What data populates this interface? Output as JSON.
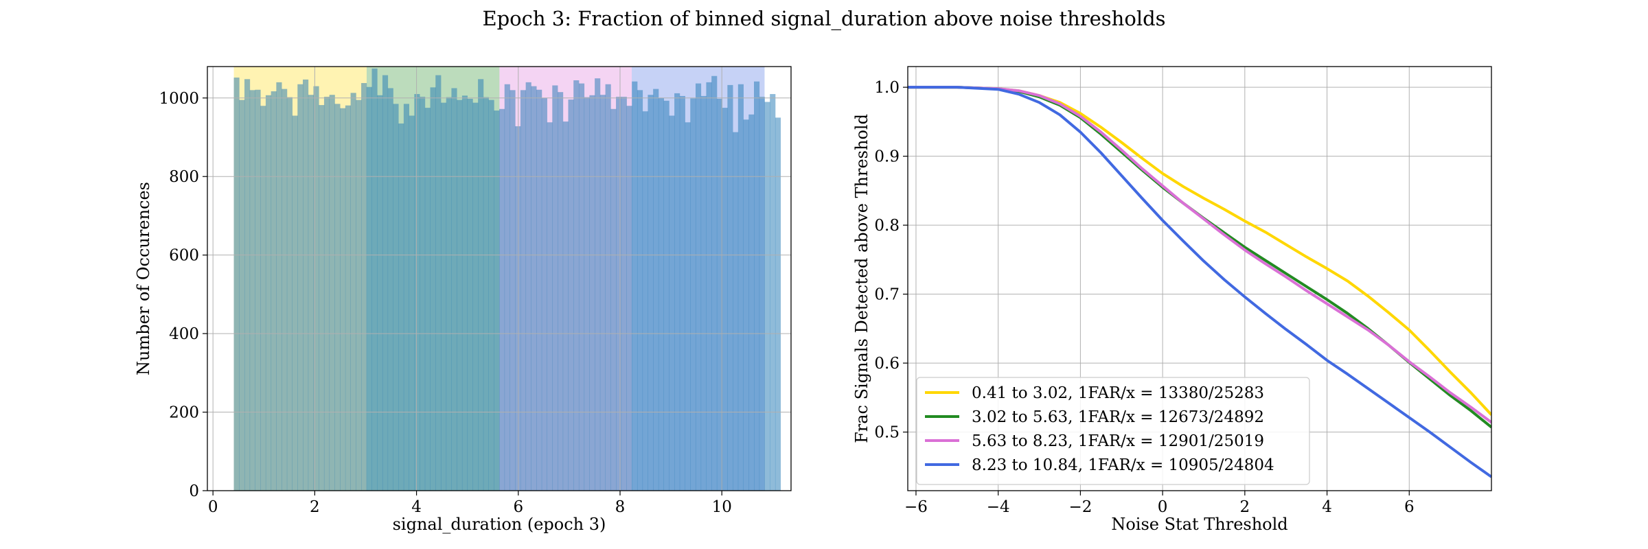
{
  "figure": {
    "suptitle": "Epoch 3: Fraction of binned signal_duration above noise thresholds"
  },
  "colors": {
    "bin1": "#FFD700",
    "bin2": "#228B22",
    "bin3": "#DA70D6",
    "bin4": "#4169E1",
    "hist_fill": "#1f77b4",
    "grid": "#b0b0b0"
  },
  "chart_data": [
    {
      "type": "bar",
      "subtype": "histogram",
      "xlabel": "signal_duration (epoch 3)",
      "ylabel": "Number of Occurences",
      "xlim": [
        -0.11,
        11.36
      ],
      "ylim": [
        0,
        1080
      ],
      "xticks": [
        0,
        2,
        4,
        6,
        8,
        10
      ],
      "yticks": [
        0,
        200,
        400,
        600,
        800,
        1000
      ],
      "grid": true,
      "bin_range": [
        0.41,
        10.84
      ],
      "bin_width": 0.1043,
      "counts": [
        1052,
        995,
        1048,
        1020,
        1021,
        980,
        1007,
        1017,
        1040,
        1023,
        1002,
        955,
        1035,
        1047,
        1008,
        1030,
        982,
        1003,
        1008,
        985,
        974,
        981,
        1013,
        995,
        1038,
        1028,
        1075,
        1007,
        1058,
        1025,
        985,
        935,
        985,
        955,
        1010,
        1003,
        975,
        1027,
        1058,
        988,
        1002,
        1025,
        995,
        1006,
        998,
        988,
        1048,
        1002,
        995,
        968,
        972,
        1035,
        1020,
        928,
        1020,
        1040,
        1030,
        1021,
        1000,
        938,
        1032,
        1015,
        940,
        996,
        1045,
        1037,
        1002,
        1007,
        1050,
        1008,
        1035,
        972,
        1003,
        1003,
        980,
        1042,
        1020,
        966,
        1008,
        1023,
        1000,
        993,
        955,
        1012,
        1005,
        938,
        999,
        1037,
        1005,
        1040,
        1056,
        998,
        975,
        1033,
        913,
        1035,
        945,
        958,
        1042,
        1003,
        990,
        1010,
        950
      ],
      "bands": [
        {
          "from": 0.41,
          "to": 3.02,
          "color": "#FFD700"
        },
        {
          "from": 3.02,
          "to": 5.63,
          "color": "#228B22"
        },
        {
          "from": 5.63,
          "to": 8.23,
          "color": "#DA70D6"
        },
        {
          "from": 8.23,
          "to": 10.84,
          "color": "#4169E1"
        }
      ]
    },
    {
      "type": "line",
      "xlabel": "Noise Stat Threshold",
      "ylabel": "Frac Signals Detected above Threshold",
      "xlim": [
        -6.2,
        8.0
      ],
      "ylim": [
        0.415,
        1.03
      ],
      "xticks": [
        -6,
        -4,
        -2,
        0,
        2,
        4,
        6
      ],
      "yticks": [
        0.5,
        0.6,
        0.7,
        0.8,
        0.9,
        1.0
      ],
      "grid": true,
      "legend_position": "lower-left",
      "series": [
        {
          "name": "0.41 to 3.02, 1FAR/x = 13380/25283",
          "color": "#FFD700",
          "x": [
            -6.2,
            -5,
            -4,
            -3.5,
            -3,
            -2.5,
            -2,
            -1.5,
            -1,
            -0.5,
            0,
            0.5,
            1,
            1.5,
            2,
            2.5,
            3,
            3.5,
            4,
            4.5,
            5,
            5.5,
            6,
            6.5,
            7,
            7.5,
            8
          ],
          "y": [
            1.0,
            1.0,
            0.998,
            0.995,
            0.988,
            0.978,
            0.962,
            0.942,
            0.92,
            0.897,
            0.875,
            0.856,
            0.839,
            0.823,
            0.806,
            0.79,
            0.772,
            0.754,
            0.737,
            0.719,
            0.697,
            0.673,
            0.648,
            0.618,
            0.587,
            0.557,
            0.525
          ]
        },
        {
          "name": "3.02 to 5.63, 1FAR/x = 12673/24892",
          "color": "#228B22",
          "x": [
            -6.2,
            -5,
            -4,
            -3.5,
            -3,
            -2.5,
            -2,
            -1.5,
            -1,
            -0.5,
            0,
            0.5,
            1,
            1.5,
            2,
            2.5,
            3,
            3.5,
            4,
            4.5,
            5,
            5.5,
            6,
            6.5,
            7,
            7.5,
            8
          ],
          "y": [
            1.0,
            1.0,
            0.998,
            0.994,
            0.986,
            0.974,
            0.956,
            0.932,
            0.906,
            0.88,
            0.855,
            0.832,
            0.81,
            0.789,
            0.768,
            0.749,
            0.73,
            0.711,
            0.692,
            0.672,
            0.65,
            0.626,
            0.601,
            0.577,
            0.553,
            0.531,
            0.507
          ]
        },
        {
          "name": "5.63 to 8.23, 1FAR/x = 12901/25019",
          "color": "#DA70D6",
          "x": [
            -6.2,
            -5,
            -4,
            -3.5,
            -3,
            -2.5,
            -2,
            -1.5,
            -1,
            -0.5,
            0,
            0.5,
            1,
            1.5,
            2,
            2.5,
            3,
            3.5,
            4,
            4.5,
            5,
            5.5,
            6,
            6.5,
            7,
            7.5,
            8
          ],
          "y": [
            1.0,
            1.0,
            0.998,
            0.995,
            0.988,
            0.976,
            0.958,
            0.935,
            0.909,
            0.882,
            0.857,
            0.832,
            0.809,
            0.786,
            0.764,
            0.744,
            0.725,
            0.705,
            0.686,
            0.667,
            0.648,
            0.626,
            0.602,
            0.58,
            0.557,
            0.536,
            0.514
          ]
        },
        {
          "name": "8.23 to 10.84, 1FAR/x = 10905/24804",
          "color": "#4169E1",
          "x": [
            -6.2,
            -5,
            -4,
            -3.5,
            -3,
            -2.5,
            -2,
            -1.5,
            -1,
            -0.5,
            0,
            0.5,
            1,
            1.5,
            2,
            2.5,
            3,
            3.5,
            4,
            4.5,
            5,
            5.5,
            6,
            6.5,
            7,
            7.5,
            8
          ],
          "y": [
            1.0,
            1.0,
            0.997,
            0.99,
            0.978,
            0.96,
            0.935,
            0.905,
            0.872,
            0.839,
            0.807,
            0.777,
            0.748,
            0.721,
            0.696,
            0.672,
            0.649,
            0.627,
            0.604,
            0.584,
            0.563,
            0.542,
            0.521,
            0.5,
            0.478,
            0.456,
            0.435
          ]
        }
      ]
    }
  ]
}
